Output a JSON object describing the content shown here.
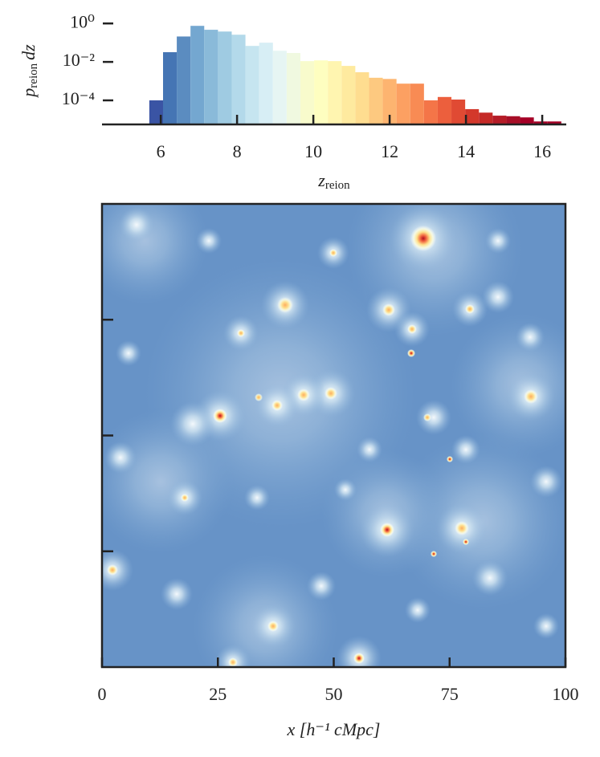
{
  "chart_data": [
    {
      "type": "histogram",
      "ylabel": {
        "symbol": "p",
        "subscript": "reion",
        "suffix": "dz"
      },
      "xlabel": {
        "symbol": "z",
        "subscript": "reion"
      },
      "bins": [
        5.7,
        6.06,
        6.42,
        6.78,
        7.14,
        7.5,
        7.86,
        8.22,
        8.58,
        8.94,
        9.3,
        9.66,
        10.02,
        10.38,
        10.74,
        11.1,
        11.46,
        11.82,
        12.18,
        12.54,
        12.9,
        13.26,
        13.62,
        13.98,
        14.34,
        14.7,
        15.06,
        15.42,
        15.78,
        16.14,
        16.5
      ],
      "values": [
        0.0001,
        0.032,
        0.21,
        0.75,
        0.47,
        0.38,
        0.26,
        0.068,
        0.1,
        0.038,
        0.029,
        0.011,
        0.012,
        0.011,
        0.0062,
        0.0029,
        0.0015,
        0.0013,
        0.00074,
        0.00074,
        0.0001,
        0.00015,
        0.00011,
        3.5e-05,
        2.3e-05,
        1.6e-05,
        1.5e-05,
        1.3e-05,
        8e-06,
        8e-06
      ],
      "colors": [
        "#3a54a4",
        "#4575b4",
        "#5b8cc0",
        "#74a7d0",
        "#8abad9",
        "#9fcbe2",
        "#b3d9ea",
        "#c6e5f0",
        "#d7eef5",
        "#e6f5f3",
        "#f0f9e0",
        "#f8fbcc",
        "#fefec0",
        "#fff5b0",
        "#feea9f",
        "#fedd90",
        "#fdc980",
        "#fdb470",
        "#fca062",
        "#f88b54",
        "#f47548",
        "#ec5f3d",
        "#e04a33",
        "#d3382b",
        "#c52a27",
        "#b51c27",
        "#a70f27",
        "#a50026",
        "#a50026",
        "#a50026"
      ],
      "log_y": true,
      "xlim": [
        4.46,
        16.63
      ],
      "ylim": [
        5.6e-06,
        1.5
      ],
      "xticks": [
        6,
        8,
        10,
        12,
        14,
        16
      ],
      "yticks": [
        {
          "value": 1,
          "label": "10⁰"
        },
        {
          "value": 0.01,
          "label": "10⁻²"
        },
        {
          "value": 0.0001,
          "label": "10⁻⁴"
        }
      ]
    },
    {
      "type": "image",
      "xlabel": "x [h⁻¹ cMpc]",
      "xlim": [
        0,
        100
      ],
      "ylim": [
        0,
        100
      ],
      "xticks": [
        0,
        25,
        50,
        75,
        100
      ],
      "yticks": [
        25,
        50,
        75
      ]
    }
  ]
}
